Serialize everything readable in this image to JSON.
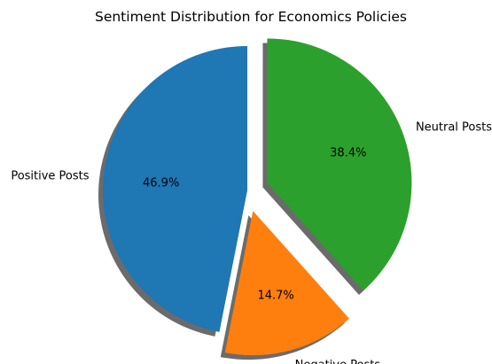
{
  "chart_data": {
    "type": "pie",
    "title": "Sentiment Distribution for Economics Policies",
    "slices": [
      {
        "label": "Positive Posts",
        "value": 46.9,
        "pct_label": "46.9%",
        "color": "#1f77b4",
        "exploded": false
      },
      {
        "label": "Negative Posts",
        "value": 14.7,
        "pct_label": "14.7%",
        "color": "#ff7f0e",
        "exploded": true
      },
      {
        "label": "Neutral Posts",
        "value": 38.4,
        "pct_label": "38.4%",
        "color": "#2ca02c",
        "exploded": true
      }
    ],
    "start_angle_deg": 90,
    "counterclockwise": true,
    "shadow": true,
    "shadow_color": "#6b6b6b"
  }
}
